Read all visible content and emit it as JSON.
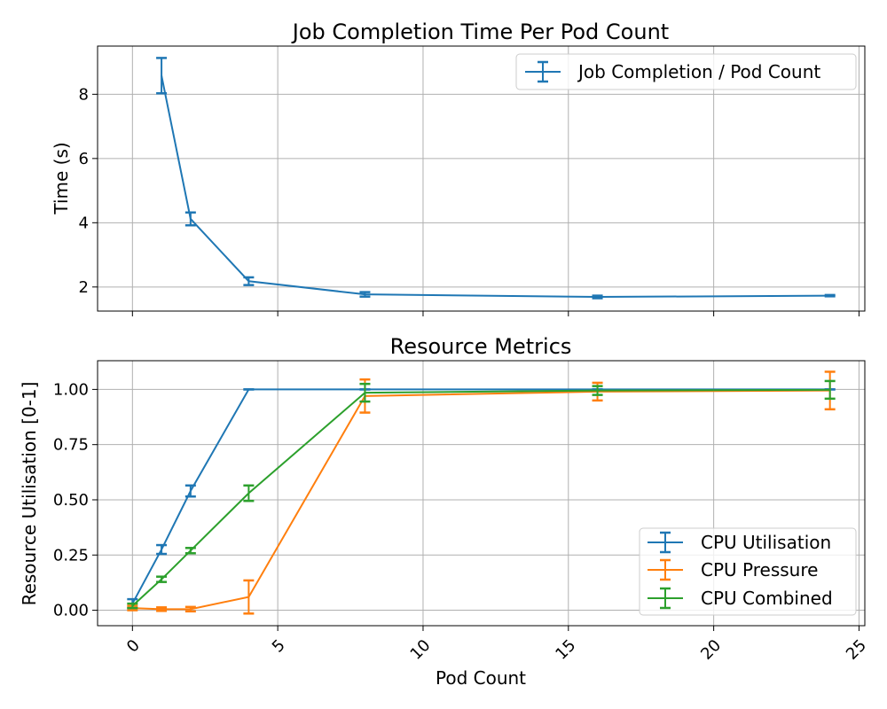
{
  "chart_data": [
    {
      "type": "line",
      "title": "Job Completion Time Per Pod Count",
      "xlabel": "",
      "ylabel": "Time (s)",
      "xlim": [
        -1.2,
        25.2
      ],
      "ylim": [
        1.25,
        9.5
      ],
      "yticks": [
        2,
        4,
        6,
        8
      ],
      "xticks": [
        0,
        5,
        10,
        15,
        20,
        25
      ],
      "grid": true,
      "legend_position": "top-right",
      "series": [
        {
          "name": "Job Completion / Pod Count",
          "color": "#1f77b4",
          "x": [
            1,
            2,
            4,
            8,
            16,
            24
          ],
          "y": [
            8.58,
            4.12,
            2.18,
            1.77,
            1.69,
            1.73
          ],
          "yerr": [
            0.55,
            0.2,
            0.12,
            0.07,
            0.04,
            0.02
          ]
        }
      ]
    },
    {
      "type": "line",
      "title": "Resource Metrics",
      "xlabel": "Pod Count",
      "ylabel": "Resource Utilisation [0-1]",
      "xlim": [
        -1.2,
        25.2
      ],
      "ylim": [
        -0.07,
        1.13
      ],
      "yticks": [
        "0.00",
        "0.25",
        "0.50",
        "0.75",
        "1.00"
      ],
      "xticks": [
        "0",
        "5",
        "10",
        "15",
        "20",
        "25"
      ],
      "grid": true,
      "legend_position": "bottom-right",
      "series": [
        {
          "name": "CPU Utilisation",
          "color": "#1f77b4",
          "x": [
            0,
            1,
            2,
            4,
            8,
            16,
            24
          ],
          "y": [
            0.03,
            0.275,
            0.54,
            1.0,
            1.0,
            1.0,
            1.0
          ],
          "yerr": [
            0.02,
            0.02,
            0.025,
            0.0,
            0.0,
            0.0,
            0.0
          ]
        },
        {
          "name": "CPU Pressure",
          "color": "#ff7f0e",
          "x": [
            0,
            1,
            2,
            4,
            8,
            16,
            24
          ],
          "y": [
            0.01,
            0.005,
            0.005,
            0.06,
            0.97,
            0.99,
            0.995
          ],
          "yerr": [
            0.01,
            0.008,
            0.01,
            0.075,
            0.075,
            0.04,
            0.085
          ]
        },
        {
          "name": "CPU Combined",
          "color": "#2ca02c",
          "x": [
            0,
            1,
            2,
            4,
            8,
            16,
            24
          ],
          "y": [
            0.02,
            0.14,
            0.27,
            0.53,
            0.985,
            0.995,
            0.998
          ],
          "yerr": [
            0.01,
            0.012,
            0.012,
            0.035,
            0.04,
            0.02,
            0.04
          ]
        }
      ]
    }
  ]
}
